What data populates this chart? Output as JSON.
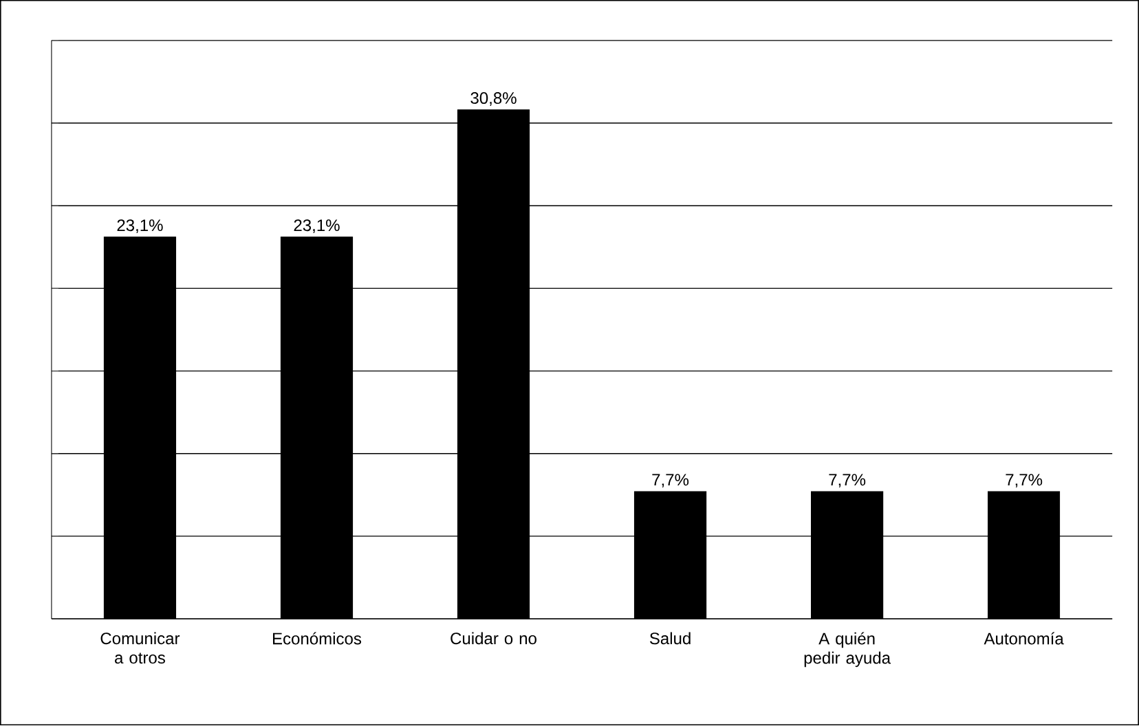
{
  "chart_data": {
    "type": "bar",
    "categories": [
      "Comunicar a otros",
      "Económicos",
      "Cuidar o no",
      "Salud",
      "A quién pedir ayuda",
      "Autonomía"
    ],
    "values": [
      23.1,
      23.1,
      30.8,
      7.7,
      7.7,
      7.7
    ],
    "value_labels": [
      "23,1%",
      "23,1%",
      "30,8%",
      "7,7%",
      "7,7%",
      "7,7%"
    ],
    "color": "#000000",
    "ylim": [
      0,
      35
    ],
    "yticks": [
      {
        "value": 0,
        "label": null
      },
      {
        "value": 5,
        "label": null
      },
      {
        "value": 10,
        "label": null
      },
      {
        "value": 15,
        "label": null
      },
      {
        "value": 20,
        "label": null
      },
      {
        "value": 25,
        "label": null
      },
      {
        "value": 30,
        "label": null
      },
      {
        "value": 35,
        "label": null
      }
    ],
    "grid": "y",
    "tick_labels": "x"
  }
}
